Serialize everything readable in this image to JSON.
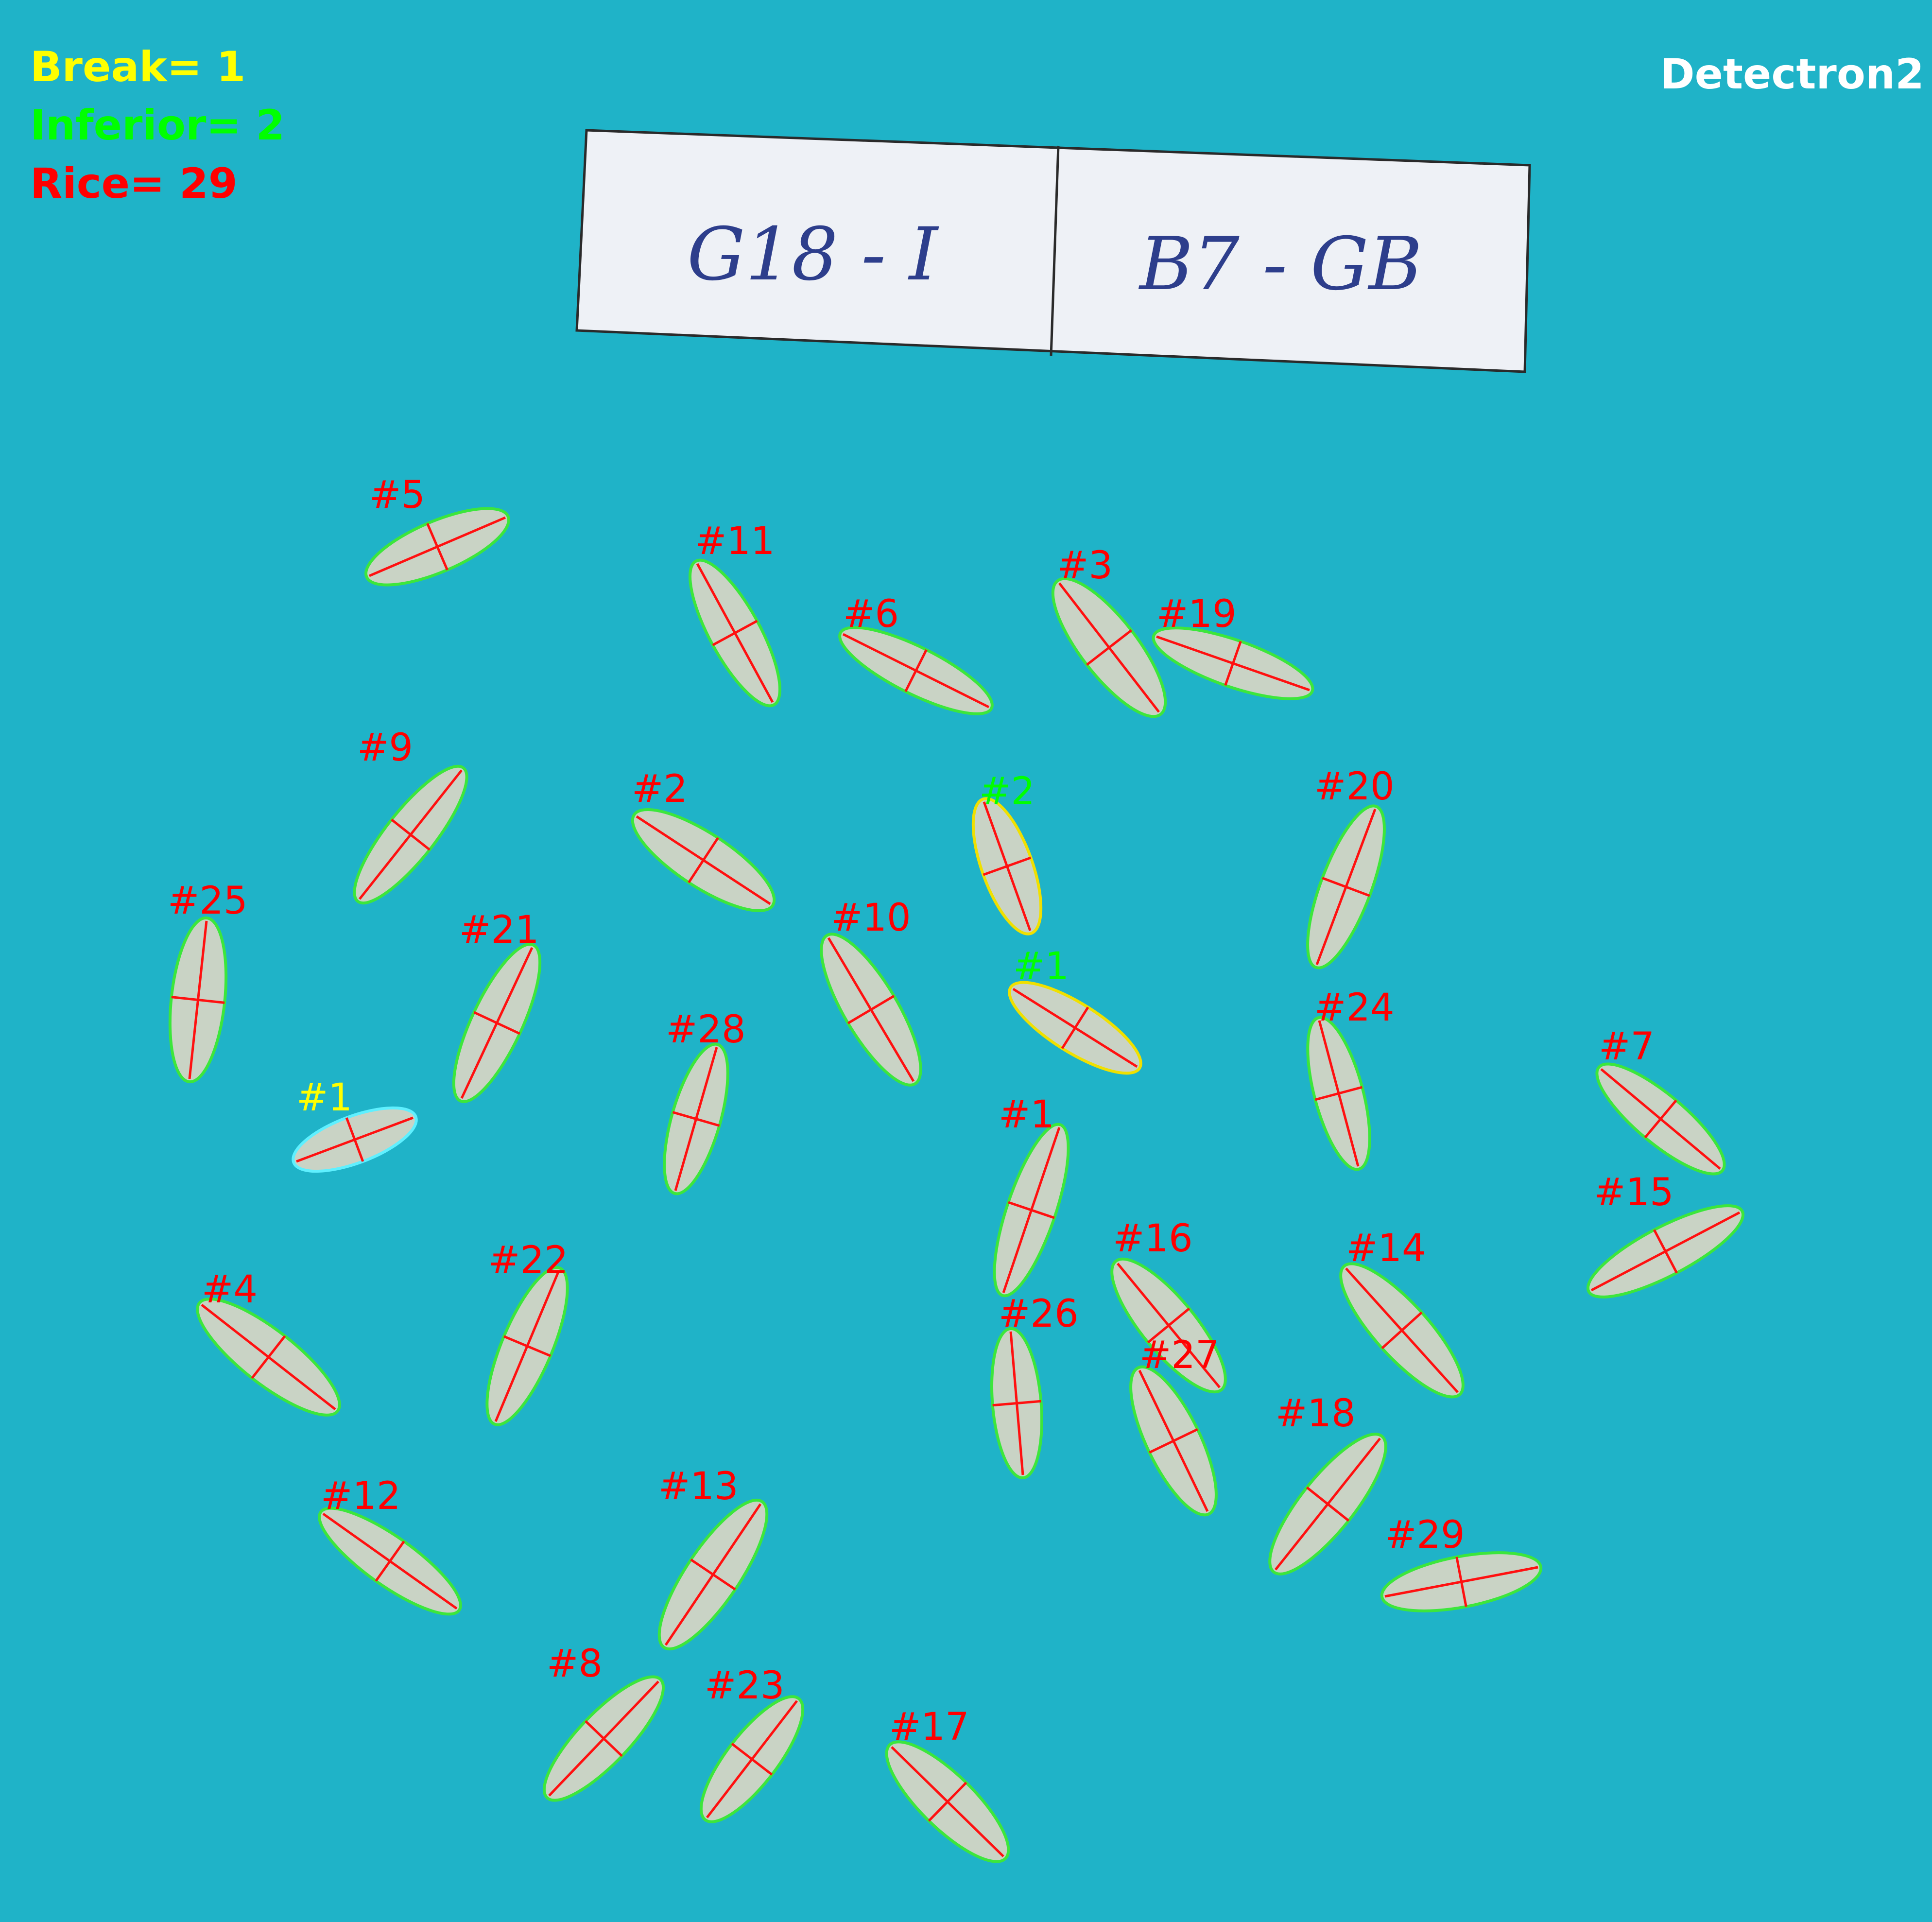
{
  "overlay": {
    "break_text": "Break= 1",
    "inferior_text": "Inferior= 2",
    "rice_text": "Rice= 29",
    "engine_text": "Detectron2"
  },
  "counts": {
    "break": 1,
    "inferior": 2,
    "rice": 29
  },
  "label_card": {
    "left": "G18 - I",
    "right": "B7 - GB"
  },
  "colors": {
    "background": "#1fb3c8",
    "break": "#ffff00",
    "inferior": "#00ff00",
    "rice": "#ff0000",
    "engine": "#ffffff",
    "rice_contour": "#3ce63c",
    "inferior_contour": "#f0e000",
    "break_contour": "#5ff0ff",
    "axis": "#ff1010",
    "grain": "#dcd6c4",
    "ink": "#2d3e8c"
  },
  "grains": [
    {
      "label": "#5",
      "type": "rice"
    },
    {
      "label": "#11",
      "type": "rice"
    },
    {
      "label": "#6",
      "type": "rice"
    },
    {
      "label": "#3",
      "type": "rice"
    },
    {
      "label": "#19",
      "type": "rice"
    },
    {
      "label": "#9",
      "type": "rice"
    },
    {
      "label": "#2",
      "type": "rice"
    },
    {
      "label": "#2",
      "type": "inferior"
    },
    {
      "label": "#20",
      "type": "rice"
    },
    {
      "label": "#25",
      "type": "rice"
    },
    {
      "label": "#21",
      "type": "rice"
    },
    {
      "label": "#10",
      "type": "rice"
    },
    {
      "label": "#1",
      "type": "inferior"
    },
    {
      "label": "#28",
      "type": "rice"
    },
    {
      "label": "#24",
      "type": "rice"
    },
    {
      "label": "#7",
      "type": "rice"
    },
    {
      "label": "#1",
      "type": "break"
    },
    {
      "label": "#1",
      "type": "rice"
    },
    {
      "label": "#15",
      "type": "rice"
    },
    {
      "label": "#4",
      "type": "rice"
    },
    {
      "label": "#22",
      "type": "rice"
    },
    {
      "label": "#16",
      "type": "rice"
    },
    {
      "label": "#14",
      "type": "rice"
    },
    {
      "label": "#26",
      "type": "rice"
    },
    {
      "label": "#27",
      "type": "rice"
    },
    {
      "label": "#18",
      "type": "rice"
    },
    {
      "label": "#12",
      "type": "rice"
    },
    {
      "label": "#13",
      "type": "rice"
    },
    {
      "label": "#29",
      "type": "rice"
    },
    {
      "label": "#8",
      "type": "rice"
    },
    {
      "label": "#23",
      "type": "rice"
    },
    {
      "label": "#17",
      "type": "rice"
    }
  ]
}
